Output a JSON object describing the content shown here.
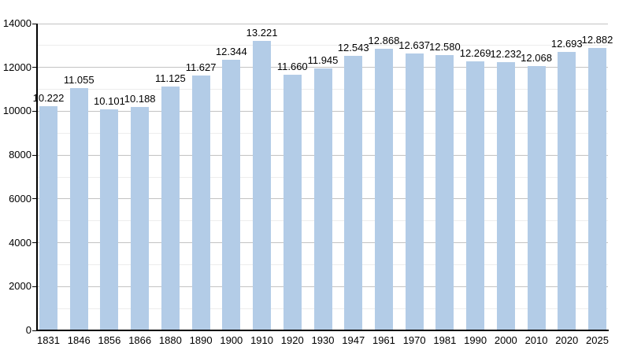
{
  "chart_data": {
    "type": "bar",
    "title": "",
    "xlabel": "",
    "ylabel": "",
    "categories": [
      "1831",
      "1846",
      "1856",
      "1866",
      "1880",
      "1890",
      "1900",
      "1910",
      "1920",
      "1930",
      "1947",
      "1961",
      "1970",
      "1981",
      "1990",
      "2000",
      "2010",
      "2020",
      "2025"
    ],
    "values": [
      10222,
      11055,
      10101,
      10188,
      11125,
      11627,
      12344,
      13221,
      11660,
      11945,
      12543,
      12868,
      12637,
      12580,
      12269,
      12232,
      12068,
      12693,
      12882
    ],
    "value_labels": [
      "10.222",
      "11.055",
      "10.101",
      "10.188",
      "11.125",
      "11.627",
      "12.344",
      "13.221",
      "11.660",
      "11.945",
      "12.543",
      "12.868",
      "12.637",
      "12.580",
      "12.269",
      "12.232",
      "12.068",
      "12.693",
      "12.882"
    ],
    "ylim": [
      0,
      14000
    ],
    "y_major_ticks": [
      0,
      2000,
      4000,
      6000,
      8000,
      10000,
      12000,
      14000
    ],
    "y_tick_labels": [
      "0",
      "2000",
      "4000",
      "6000",
      "8000",
      "10000",
      "12000",
      "14000"
    ],
    "y_minor_step": 1000,
    "grid": true,
    "legend": "none",
    "bar_color": "#b3cce7",
    "axis_color": "#000000",
    "major_grid_color": "#c3c3c3",
    "minor_grid_color": "#ededed",
    "label_color": "#000000"
  }
}
